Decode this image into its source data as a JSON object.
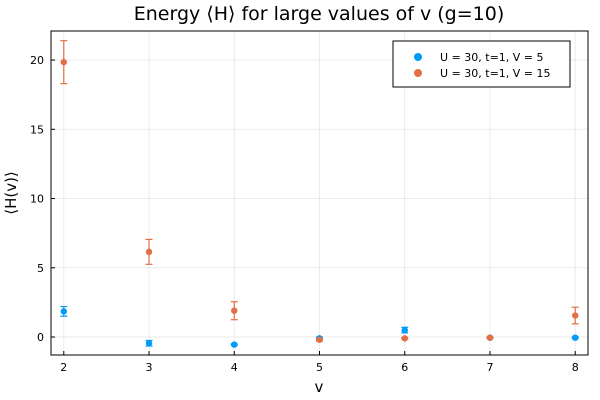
{
  "chart_data": {
    "type": "scatter",
    "title": "Energy ⟨H⟩ for large values of v (g=10)",
    "xlabel": "v",
    "ylabel": "⟨H(v)⟩",
    "xlim": [
      1.85,
      8.15
    ],
    "ylim": [
      -1.3,
      22.1
    ],
    "xticks": [
      2,
      3,
      4,
      5,
      6,
      7,
      8
    ],
    "yticks": [
      0,
      5,
      10,
      15,
      20
    ],
    "grid": true,
    "legend_position": "top-right",
    "series": [
      {
        "name": "U = 30, t=1, V = 5",
        "color": "#009af9",
        "x": [
          2,
          3,
          4,
          5,
          6,
          7,
          8
        ],
        "y": [
          1.85,
          -0.45,
          -0.55,
          -0.1,
          0.5,
          -0.05,
          -0.05
        ],
        "err": [
          0.35,
          0.2,
          0.05,
          0.1,
          0.2,
          0.05,
          0.05
        ]
      },
      {
        "name": "U = 30, t=1, V = 15",
        "color": "#e26f46",
        "x": [
          2,
          3,
          4,
          5,
          6,
          7,
          8
        ],
        "y": [
          19.85,
          6.15,
          1.9,
          -0.2,
          -0.1,
          -0.05,
          1.55
        ],
        "err": [
          1.55,
          0.9,
          0.65,
          0.1,
          0.05,
          0.05,
          0.6
        ]
      }
    ]
  }
}
